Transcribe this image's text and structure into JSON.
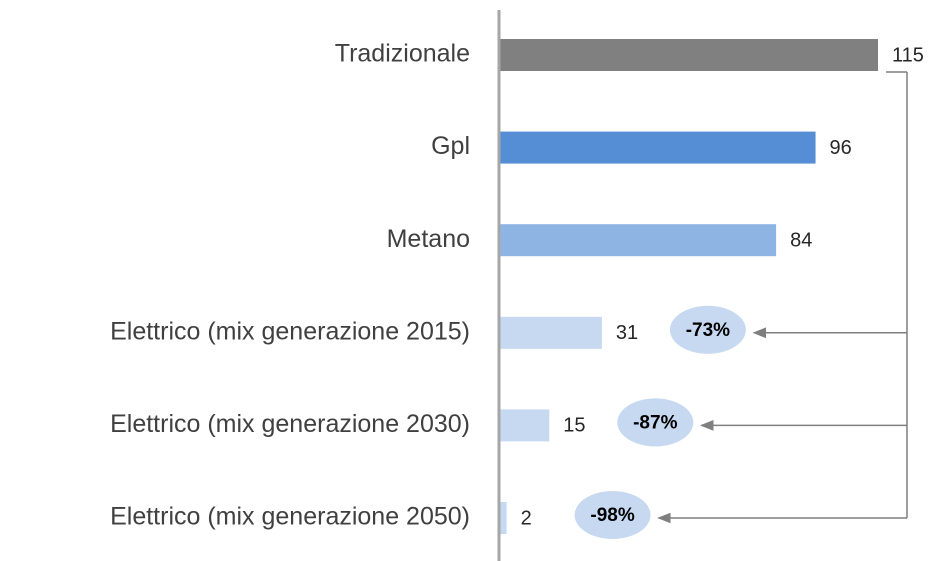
{
  "chart_data": {
    "type": "bar",
    "orientation": "horizontal",
    "categories": [
      "Tradizionale",
      "Gpl",
      "Metano",
      "Elettrico (mix generazione 2015)",
      "Elettrico (mix generazione 2030)",
      "Elettrico (mix generazione 2050)"
    ],
    "values": [
      115,
      96,
      84,
      31,
      15,
      2
    ],
    "colors": [
      "#808080",
      "#558ed5",
      "#8eb4e3",
      "#c6d9f1",
      "#c6d9f1",
      "#c6d9f1"
    ],
    "annotations": [
      null,
      null,
      null,
      "-73%",
      "-87%",
      "-98%"
    ],
    "annotation_color": "#c6d9f1"
  }
}
